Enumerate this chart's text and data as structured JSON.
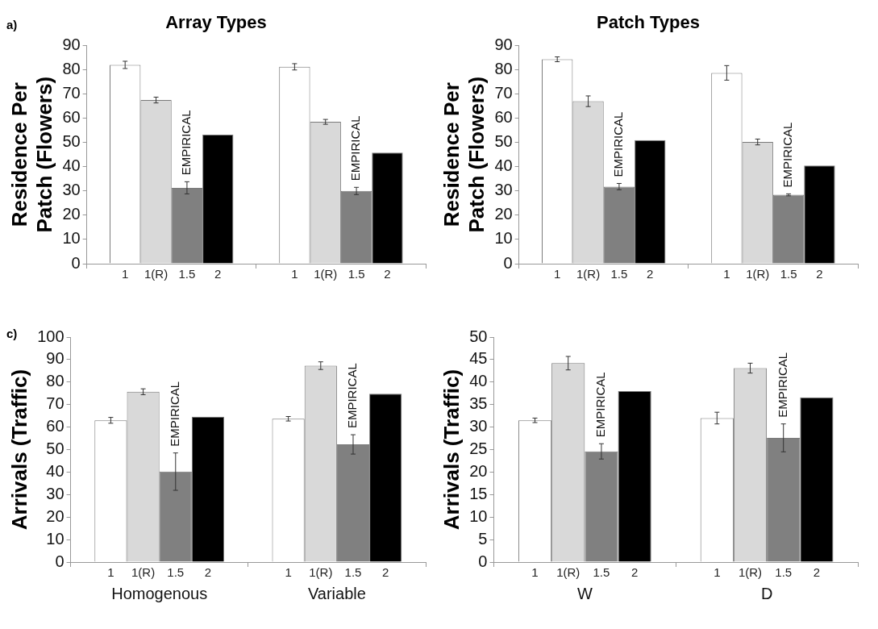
{
  "chart_data": [
    {
      "type": "bar",
      "title": "Array Types",
      "ylabel": "Residence Per Patch (Flowers)",
      "categories": [
        null,
        null
      ],
      "ylim": [
        0,
        90
      ],
      "yticks": [
        0,
        10,
        20,
        30,
        40,
        50,
        60,
        70,
        80,
        90
      ],
      "grid": false,
      "legend": false,
      "annotations": [
        "a)",
        {
          "text": "EMPIRICAL"
        },
        {
          "text": "EMPIRICAL"
        }
      ],
      "series": [
        {
          "name": "1",
          "color": "#ffffff",
          "values": [
            82,
            81.2
          ],
          "errors": [
            1.5,
            1.3
          ]
        },
        {
          "name": "1(R)",
          "color": "#d9d9d9",
          "values": [
            67.5,
            58.5
          ],
          "errors": [
            1.2,
            1
          ]
        },
        {
          "name": "1.5",
          "color": "#808080",
          "values": [
            31.3,
            30
          ],
          "errors": [
            2.5,
            1.5
          ]
        },
        {
          "name": "2",
          "color": "#000000",
          "values": [
            53.2,
            45.8
          ],
          "errors": [
            null,
            null
          ]
        }
      ]
    },
    {
      "type": "bar",
      "title": "Patch Types",
      "ylabel": "Residence Per Patch (Flowers)",
      "categories": [
        null,
        null
      ],
      "ylim": [
        0,
        90
      ],
      "yticks": [
        0,
        10,
        20,
        30,
        40,
        50,
        60,
        70,
        80,
        90
      ],
      "grid": false,
      "legend": false,
      "annotations": [
        {
          "text": "EMPIRICAL"
        },
        {
          "text": "EMPIRICAL"
        }
      ],
      "series": [
        {
          "name": "1",
          "color": "#ffffff",
          "values": [
            84.3,
            78.7
          ],
          "errors": [
            1,
            3
          ]
        },
        {
          "name": "1(R)",
          "color": "#d9d9d9",
          "values": [
            67,
            50.2
          ],
          "errors": [
            2.2,
            1.2
          ]
        },
        {
          "name": "1.5",
          "color": "#808080",
          "values": [
            31.8,
            28.4
          ],
          "errors": [
            1.3,
            0.4
          ]
        },
        {
          "name": "2",
          "color": "#000000",
          "values": [
            51,
            40.5
          ],
          "errors": [
            null,
            null
          ]
        }
      ]
    },
    {
      "type": "bar",
      "ylabel": "Arrivals (Traffic)",
      "categories": [
        "Homogenous",
        "Variable"
      ],
      "ylim": [
        0,
        100
      ],
      "yticks": [
        0,
        10,
        20,
        30,
        40,
        50,
        60,
        70,
        80,
        90,
        100
      ],
      "grid": false,
      "legend": false,
      "annotations": [
        "c)",
        {
          "text": "EMPIRICAL"
        },
        {
          "text": "EMPIRICAL"
        }
      ],
      "series": [
        {
          "name": "1",
          "color": "#ffffff",
          "values": [
            63,
            63.7
          ],
          "errors": [
            1.3,
            1
          ]
        },
        {
          "name": "1(R)",
          "color": "#d9d9d9",
          "values": [
            75.7,
            87.3
          ],
          "errors": [
            1.3,
            1.7
          ]
        },
        {
          "name": "1.5",
          "color": "#808080",
          "values": [
            40.2,
            52.3
          ],
          "errors": [
            8.3,
            4.3
          ]
        },
        {
          "name": "2",
          "color": "#000000",
          "values": [
            64.6,
            74.8
          ],
          "errors": [
            null,
            null
          ]
        }
      ]
    },
    {
      "type": "bar",
      "ylabel": "Arrivals (Traffic)",
      "categories": [
        "W",
        "D"
      ],
      "ylim": [
        0,
        50
      ],
      "yticks": [
        0,
        5,
        10,
        15,
        20,
        25,
        30,
        35,
        40,
        45,
        50
      ],
      "grid": false,
      "legend": false,
      "annotations": [
        {
          "text": "EMPIRICAL"
        },
        {
          "text": "EMPIRICAL"
        }
      ],
      "series": [
        {
          "name": "1",
          "color": "#ffffff",
          "values": [
            31.5,
            32
          ],
          "errors": [
            0.5,
            1.3
          ]
        },
        {
          "name": "1(R)",
          "color": "#d9d9d9",
          "values": [
            44.2,
            43.1
          ],
          "errors": [
            1.5,
            1.1
          ]
        },
        {
          "name": "1.5",
          "color": "#808080",
          "values": [
            24.6,
            27.6
          ],
          "errors": [
            1.7,
            3.1
          ]
        },
        {
          "name": "2",
          "color": "#000000",
          "values": [
            38,
            36.6
          ],
          "errors": [
            null,
            null
          ]
        }
      ]
    }
  ]
}
